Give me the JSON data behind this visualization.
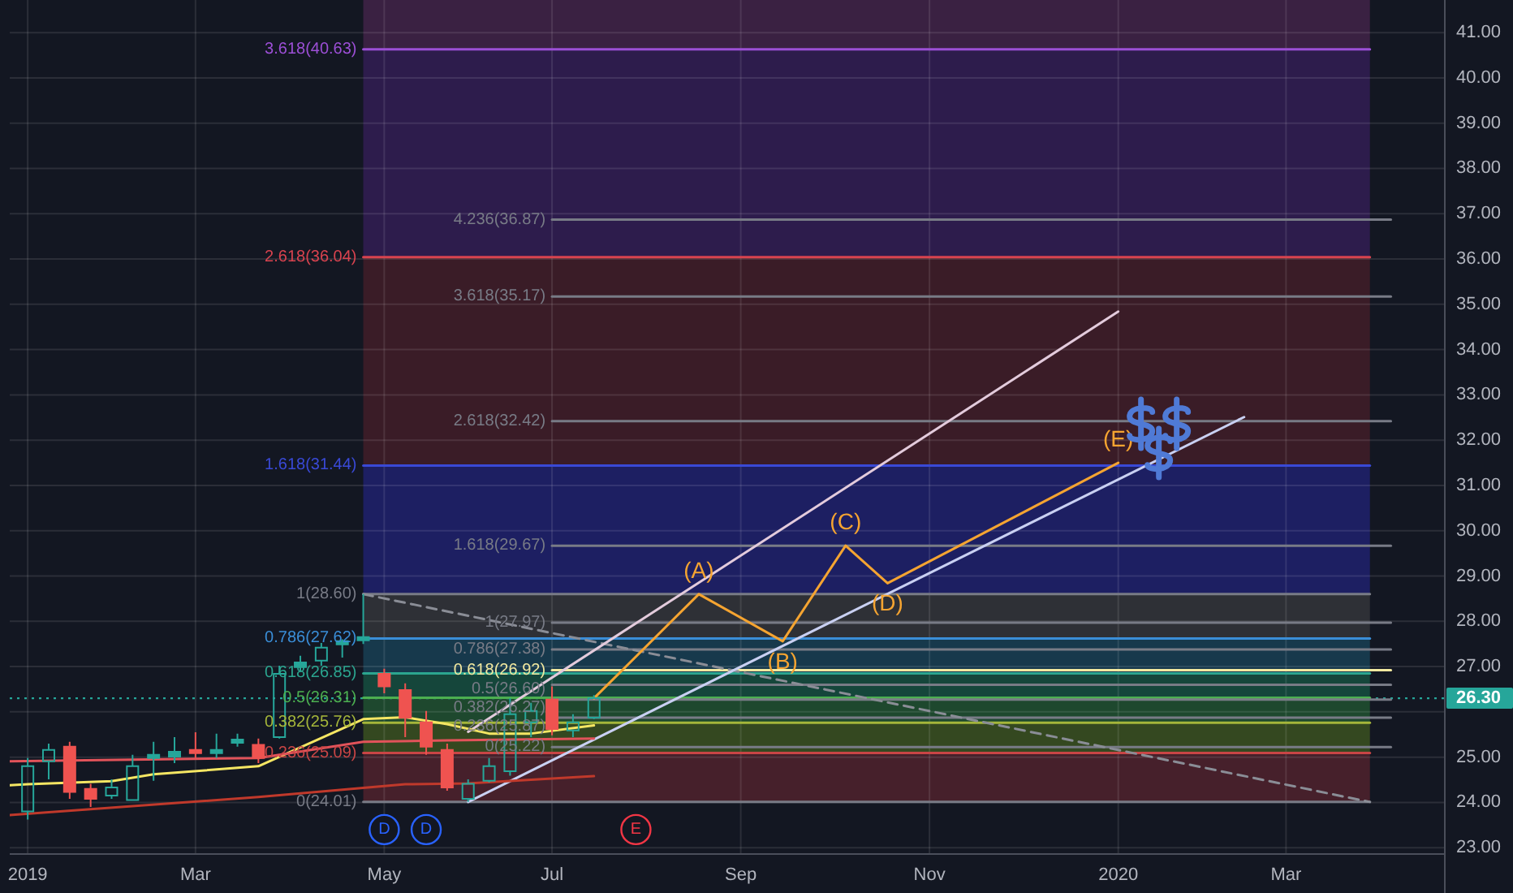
{
  "chart_data": {
    "type": "candlestick",
    "x": [
      "2019-01-07",
      "2019-01-14",
      "2019-01-21",
      "2019-01-28",
      "2019-02-04",
      "2019-02-11",
      "2019-02-18",
      "2019-02-25",
      "2019-03-04",
      "2019-03-11",
      "2019-03-18",
      "2019-03-25",
      "2019-04-01",
      "2019-04-08",
      "2019-04-15",
      "2019-04-22",
      "2019-04-29",
      "2019-05-06",
      "2019-05-13",
      "2019-05-20",
      "2019-05-27",
      "2019-06-03",
      "2019-06-10",
      "2019-06-17",
      "2019-06-24",
      "2019-07-01",
      "2019-07-08",
      "2019-07-15"
    ],
    "ohlc": [
      [
        23.8,
        24.98,
        23.62,
        24.8
      ],
      [
        24.91,
        25.3,
        24.51,
        25.16
      ],
      [
        25.23,
        25.34,
        24.08,
        24.23
      ],
      [
        24.3,
        24.41,
        23.9,
        24.08
      ],
      [
        24.15,
        24.51,
        24.08,
        24.33
      ],
      [
        24.05,
        25.05,
        24.05,
        24.8
      ],
      [
        25.01,
        25.34,
        24.48,
        25.05
      ],
      [
        25.01,
        25.44,
        24.87,
        25.12
      ],
      [
        25.16,
        25.55,
        24.98,
        25.12
      ],
      [
        25.09,
        25.52,
        24.98,
        25.16
      ],
      [
        25.37,
        25.52,
        25.23,
        25.39
      ],
      [
        25.27,
        25.41,
        24.87,
        24.98
      ],
      [
        25.44,
        27.02,
        25.41,
        26.84
      ],
      [
        26.99,
        27.24,
        26.88,
        27.09
      ],
      [
        27.13,
        27.52,
        27.02,
        27.42
      ],
      [
        27.52,
        27.6,
        27.2,
        27.56
      ],
      [
        27.58,
        28.6,
        27.5,
        27.65
      ],
      [
        26.84,
        26.95,
        26.41,
        26.56
      ],
      [
        26.48,
        26.63,
        25.44,
        25.87
      ],
      [
        25.77,
        26.02,
        25.05,
        25.23
      ],
      [
        25.16,
        25.3,
        24.26,
        24.33
      ],
      [
        24.08,
        24.51,
        24.01,
        24.41
      ],
      [
        24.48,
        24.98,
        24.44,
        24.8
      ],
      [
        24.69,
        26.3,
        24.59,
        25.95
      ],
      [
        25.77,
        26.2,
        25.44,
        26.02
      ],
      [
        26.27,
        26.56,
        25.48,
        25.62
      ],
      [
        25.59,
        25.95,
        25.44,
        25.77
      ],
      [
        25.87,
        26.37,
        25.84,
        26.3
      ]
    ],
    "colors": [
      "#26a69a",
      "#26a69a",
      "#ef5350",
      "#ef5350",
      "#26a69a",
      "#26a69a",
      "#26a69a",
      "#26a69a",
      "#ef5350",
      "#26a69a",
      "#26a69a",
      "#ef5350",
      "#26a69a",
      "#26a69a",
      "#26a69a",
      "#26a69a",
      "#26a69a",
      "#ef5350",
      "#ef5350",
      "#ef5350",
      "#ef5350",
      "#26a69a",
      "#26a69a",
      "#26a69a",
      "#26a69a",
      "#ef5350",
      "#26a69a",
      "#26a69a"
    ],
    "series": [
      {
        "type": "line",
        "x": [
          "2019-04-29",
          "2020-03-30"
        ],
        "values": [
          40.63,
          40.63
        ],
        "color": "#9c4fd6"
      },
      {
        "type": "line",
        "x": [
          "2019-04-29",
          "2020-03-30"
        ],
        "values": [
          36.04,
          36.04
        ],
        "color": "#d8434f"
      },
      {
        "type": "line",
        "x": [
          "2019-04-29",
          "2020-03-30"
        ],
        "values": [
          31.44,
          31.44
        ],
        "color": "#3949d6"
      },
      {
        "type": "line",
        "x": [
          "2019-04-29",
          "2020-03-30"
        ],
        "values": [
          28.6,
          28.6
        ],
        "color": "#787b86"
      },
      {
        "type": "line",
        "x": [
          "2019-04-29",
          "2020-03-30"
        ],
        "values": [
          27.62,
          27.62
        ],
        "color": "#3a8ed8"
      },
      {
        "type": "line",
        "x": [
          "2019-04-29",
          "2020-03-30"
        ],
        "values": [
          26.85,
          26.85
        ],
        "color": "#2ba58f"
      },
      {
        "type": "line",
        "x": [
          "2019-04-29",
          "2020-03-30"
        ],
        "values": [
          26.31,
          26.31
        ],
        "color": "#4caf50"
      },
      {
        "type": "line",
        "x": [
          "2019-04-29",
          "2020-03-30"
        ],
        "values": [
          25.76,
          25.76
        ],
        "color": "#a5b63a"
      },
      {
        "type": "line",
        "x": [
          "2019-04-29",
          "2020-03-30"
        ],
        "values": [
          25.09,
          25.09
        ],
        "color": "#c94545"
      },
      {
        "type": "line",
        "x": [
          "2019-04-29",
          "2020-03-30"
        ],
        "values": [
          24.01,
          24.01
        ],
        "color": "#787b86"
      },
      {
        "type": "line",
        "x": [
          "2019-07-01",
          "2020-04-06"
        ],
        "values": [
          36.87,
          36.87
        ],
        "color": "#787b86"
      },
      {
        "type": "line",
        "x": [
          "2019-07-01",
          "2020-04-06"
        ],
        "values": [
          35.17,
          35.17
        ],
        "color": "#787b86"
      },
      {
        "type": "line",
        "x": [
          "2019-07-01",
          "2020-04-06"
        ],
        "values": [
          32.42,
          32.42
        ],
        "color": "#787b86"
      },
      {
        "type": "line",
        "x": [
          "2019-07-01",
          "2020-04-06"
        ],
        "values": [
          29.67,
          29.67
        ],
        "color": "#787b86"
      },
      {
        "type": "line",
        "x": [
          "2019-07-01",
          "2020-04-06"
        ],
        "values": [
          27.97,
          27.97
        ],
        "color": "#787b86"
      },
      {
        "type": "line",
        "x": [
          "2019-07-01",
          "2020-04-06"
        ],
        "values": [
          27.38,
          27.38
        ],
        "color": "#787b86"
      },
      {
        "type": "line",
        "x": [
          "2019-07-01",
          "2020-04-06"
        ],
        "values": [
          26.92,
          26.92
        ],
        "color": "#f2e9a0"
      },
      {
        "type": "line",
        "x": [
          "2019-07-01",
          "2020-04-06"
        ],
        "values": [
          26.6,
          26.6
        ],
        "color": "#787b86"
      },
      {
        "type": "line",
        "x": [
          "2019-07-01",
          "2020-04-06"
        ],
        "values": [
          26.27,
          26.27
        ],
        "color": "#787b86"
      },
      {
        "type": "line",
        "x": [
          "2019-07-01",
          "2020-04-06"
        ],
        "values": [
          25.87,
          25.87
        ],
        "color": "#787b86"
      },
      {
        "type": "line",
        "x": [
          "2019-07-01",
          "2020-04-06"
        ],
        "values": [
          25.22,
          25.22
        ],
        "color": "#787b86"
      },
      {
        "type": "line",
        "x": [
          "2019-04-29",
          "2020-03-30"
        ],
        "values": [
          28.6,
          24.01
        ],
        "color": "#8a8d96",
        "line_style": "dashed"
      },
      {
        "type": "line",
        "x": [
          "2019-06-03",
          "2020-01-06"
        ],
        "values": [
          25.56,
          34.84
        ],
        "color": "#e3cbdc"
      },
      {
        "type": "line",
        "x": [
          "2019-06-03",
          "2020-02-17"
        ],
        "values": [
          24.01,
          32.51
        ],
        "color": "#c9d0f2"
      },
      {
        "type": "line",
        "x": [
          "2019-01-01",
          "2019-01-07",
          "2019-02-04",
          "2019-02-18",
          "2019-03-25",
          "2019-04-29",
          "2019-05-13",
          "2019-05-27",
          "2019-06-10",
          "2019-06-24",
          "2019-07-15"
        ],
        "values": [
          24.38,
          24.4,
          24.47,
          24.62,
          24.8,
          25.84,
          25.88,
          25.73,
          25.52,
          25.52,
          25.7
        ],
        "color": "#f5e663"
      },
      {
        "type": "line",
        "x": [
          "2019-01-01",
          "2019-03-25",
          "2019-04-29",
          "2019-05-27",
          "2019-07-15"
        ],
        "values": [
          24.91,
          24.98,
          25.34,
          25.37,
          25.41
        ],
        "color": "#e2535a"
      },
      {
        "type": "line",
        "x": [
          "2019-01-01",
          "2019-03-25",
          "2019-05-13",
          "2019-06-03",
          "2019-07-15"
        ],
        "values": [
          23.72,
          24.12,
          24.4,
          24.42,
          24.58
        ],
        "color": "#c0392b"
      },
      {
        "type": "line",
        "x": [
          "2019-07-15",
          "2019-08-19",
          "2019-09-16",
          "2019-10-07",
          "2019-10-21",
          "2020-01-06"
        ],
        "values": [
          26.3,
          28.6,
          27.56,
          29.67,
          28.84,
          31.5
        ],
        "color": "#f5a431"
      }
    ],
    "bands": [
      {
        "axis": "y",
        "from": 40.63,
        "to": 41.72,
        "color": "#3a2142"
      },
      {
        "axis": "y",
        "from": 36.04,
        "to": 40.63,
        "color": "#2d1c4c"
      },
      {
        "axis": "y",
        "from": 31.44,
        "to": 36.04,
        "color": "#3a1c27"
      },
      {
        "axis": "y",
        "from": 28.6,
        "to": 31.44,
        "color": "#1d1f62"
      },
      {
        "axis": "y",
        "from": 27.62,
        "to": 28.6,
        "color": "#2e3036"
      },
      {
        "axis": "y",
        "from": 26.85,
        "to": 27.62,
        "color": "#17394c"
      },
      {
        "axis": "y",
        "from": 26.31,
        "to": 26.85,
        "color": "#15463b"
      },
      {
        "axis": "y",
        "from": 25.76,
        "to": 26.31,
        "color": "#1e482e"
      },
      {
        "axis": "y",
        "from": 25.09,
        "to": 25.76,
        "color": "#344820"
      },
      {
        "axis": "y",
        "from": 24.01,
        "to": 25.09,
        "color": "#46202b"
      }
    ],
    "ref_lines": [
      {
        "axis": "y",
        "value": 26.3,
        "label": "26.30",
        "color": "#26a69a",
        "line_style": "dotted"
      }
    ],
    "annotations": [
      {
        "text": "3.618(40.63)",
        "x": "2019-04-29",
        "y": 40.63
      },
      {
        "text": "2.618(36.04)",
        "x": "2019-04-29",
        "y": 36.04
      },
      {
        "text": "1.618(31.44)",
        "x": "2019-04-29",
        "y": 31.44
      },
      {
        "text": "1(28.60)",
        "x": "2019-04-29",
        "y": 28.6
      },
      {
        "text": "0.786(27.62)",
        "x": "2019-04-29",
        "y": 27.62
      },
      {
        "text": "0.618(26.85)",
        "x": "2019-04-29",
        "y": 26.85
      },
      {
        "text": "0.5(26.31)",
        "x": "2019-04-29",
        "y": 26.31
      },
      {
        "text": "0.382(25.76)",
        "x": "2019-04-29",
        "y": 25.76
      },
      {
        "text": "0.236(25.09)",
        "x": "2019-04-29",
        "y": 25.09
      },
      {
        "text": "0(24.01)",
        "x": "2019-04-29",
        "y": 24.01
      },
      {
        "text": "4.236(36.87)",
        "x": "2019-07-01",
        "y": 36.87
      },
      {
        "text": "3.618(35.17)",
        "x": "2019-07-01",
        "y": 35.17
      },
      {
        "text": "2.618(32.42)",
        "x": "2019-07-01",
        "y": 32.42
      },
      {
        "text": "1.618(29.67)",
        "x": "2019-07-01",
        "y": 29.67
      },
      {
        "text": "1(27.97)",
        "x": "2019-07-01",
        "y": 27.97
      },
      {
        "text": "0.786(27.38)",
        "x": "2019-07-01",
        "y": 27.38
      },
      {
        "text": "0.618(26.92)",
        "x": "2019-07-01",
        "y": 26.92
      },
      {
        "text": "0.5(26.60)",
        "x": "2019-07-01",
        "y": 26.6
      },
      {
        "text": "0.382(26.27)",
        "x": "2019-07-01",
        "y": 26.27
      },
      {
        "text": "0.236(25.87)",
        "x": "2019-07-01",
        "y": 25.87
      },
      {
        "text": "0(25.22)",
        "x": "2019-07-01",
        "y": 25.22
      },
      {
        "text": "(A)",
        "x": "2019-08-19",
        "y": 28.6
      },
      {
        "text": "(B)",
        "x": "2019-09-16",
        "y": 27.56
      },
      {
        "text": "(C)",
        "x": "2019-10-07",
        "y": 29.67
      },
      {
        "text": "(D)",
        "x": "2019-10-21",
        "y": 28.84
      },
      {
        "text": "(E)",
        "x": "2020-01-06",
        "y": 31.5
      },
      {
        "text": "D",
        "x": "2019-05-06",
        "y": 23.4
      },
      {
        "text": "D",
        "x": "2019-05-20",
        "y": 23.4
      },
      {
        "text": "E",
        "x": "2019-07-29",
        "y": 23.4
      }
    ],
    "xlim": [
      "2019-01-01",
      "2020-04-24"
    ],
    "xticks": [
      {
        "value": "2019-01-07",
        "label": "2019"
      },
      {
        "value": "2019-03-04",
        "label": "Mar"
      },
      {
        "value": "2019-05-06",
        "label": "May"
      },
      {
        "value": "2019-07-01",
        "label": "Jul"
      },
      {
        "value": "2019-09-02",
        "label": "Sep"
      },
      {
        "value": "2019-11-04",
        "label": "Nov"
      },
      {
        "value": "2020-01-06",
        "label": "2020"
      },
      {
        "value": "2020-03-02",
        "label": "Mar"
      }
    ],
    "ylim": [
      22.86,
      41.72
    ],
    "yticks": [
      {
        "value": 23,
        "label": "23.00"
      },
      {
        "value": 24,
        "label": "24.00"
      },
      {
        "value": 25,
        "label": "25.00"
      },
      {
        "value": 26,
        "label": null
      },
      {
        "value": 27,
        "label": "27.00"
      },
      {
        "value": 28,
        "label": "28.00"
      },
      {
        "value": 29,
        "label": "29.00"
      },
      {
        "value": 30,
        "label": "30.00"
      },
      {
        "value": 31,
        "label": "31.00"
      },
      {
        "value": 32,
        "label": "32.00"
      },
      {
        "value": 33,
        "label": "33.00"
      },
      {
        "value": 34,
        "label": "34.00"
      },
      {
        "value": 35,
        "label": "35.00"
      },
      {
        "value": 36,
        "label": "36.00"
      },
      {
        "value": 37,
        "label": "37.00"
      },
      {
        "value": 38,
        "label": "38.00"
      },
      {
        "value": 39,
        "label": "39.00"
      },
      {
        "value": 40,
        "label": "40.00"
      },
      {
        "value": 41,
        "label": "41.00"
      }
    ],
    "grid": true
  }
}
